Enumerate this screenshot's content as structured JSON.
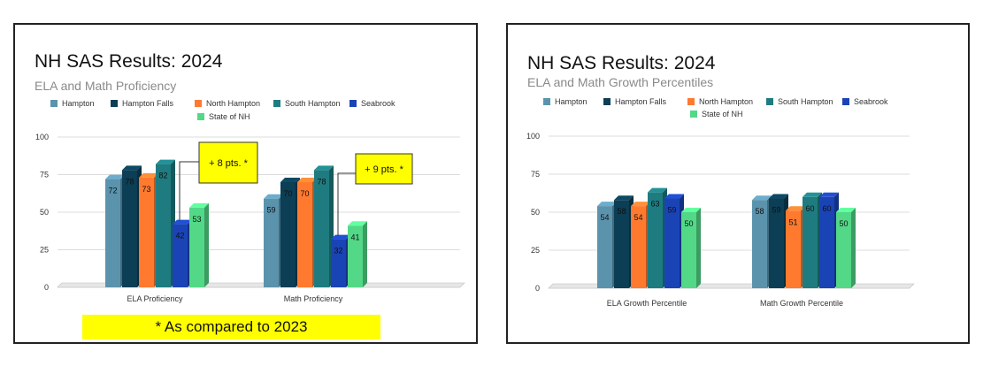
{
  "note": "* As compared to 2023",
  "colors": {
    "Hampton": "#5b93ad",
    "Hampton Falls": "#0c3e55",
    "North Hampton": "#ff7a2f",
    "South Hampton": "#1e7c80",
    "Seabrook": "#1a44b5",
    "State of NH": "#53d888"
  },
  "chart_data": [
    {
      "type": "bar",
      "title": "NH SAS Results: 2024",
      "subtitle": "ELA and Math Proficiency",
      "categories": [
        "ELA Proficiency",
        "Math Proficiency"
      ],
      "series": [
        {
          "name": "Hampton",
          "values": [
            72,
            59
          ]
        },
        {
          "name": "Hampton Falls",
          "values": [
            78,
            70
          ]
        },
        {
          "name": "North Hampton",
          "values": [
            73,
            70
          ]
        },
        {
          "name": "South Hampton",
          "values": [
            82,
            78
          ]
        },
        {
          "name": "Seabrook",
          "values": [
            42,
            32
          ]
        },
        {
          "name": "State of NH",
          "values": [
            53,
            41
          ]
        }
      ],
      "ylim": [
        0,
        100
      ],
      "yticks": [
        0,
        25,
        50,
        75,
        100
      ],
      "grid": true,
      "legend": "top",
      "annotations": [
        {
          "text": "+ 8 pts. *",
          "category": "ELA Proficiency",
          "series": "Seabrook"
        },
        {
          "text": "+ 9 pts. *",
          "category": "Math Proficiency",
          "series": "Seabrook"
        }
      ]
    },
    {
      "type": "bar",
      "title": "NH SAS Results: 2024",
      "subtitle": "ELA and Math Growth Percentiles",
      "categories": [
        "ELA Growth Percentile",
        "Math Growth Percentile"
      ],
      "series": [
        {
          "name": "Hampton",
          "values": [
            54,
            58
          ]
        },
        {
          "name": "Hampton Falls",
          "values": [
            58,
            59
          ]
        },
        {
          "name": "North Hampton",
          "values": [
            54,
            51
          ]
        },
        {
          "name": "South Hampton",
          "values": [
            63,
            60
          ]
        },
        {
          "name": "Seabrook",
          "values": [
            59,
            60
          ]
        },
        {
          "name": "State of NH",
          "values": [
            50,
            50
          ]
        }
      ],
      "ylim": [
        0,
        100
      ],
      "yticks": [
        0,
        25,
        50,
        75,
        100
      ],
      "grid": true,
      "legend": "top"
    }
  ]
}
